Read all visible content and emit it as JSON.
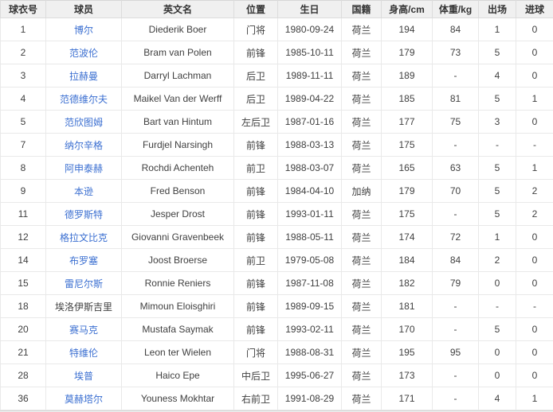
{
  "colors": {
    "link_blue": "#3b6fd1",
    "header_background": "#f0f0f0",
    "cell_border": "#e9e9e9",
    "text": "#404040"
  },
  "table": {
    "columns": [
      {
        "key": "number",
        "label": "球衣号"
      },
      {
        "key": "name",
        "label": "球员"
      },
      {
        "key": "en_name",
        "label": "英文名"
      },
      {
        "key": "position",
        "label": "位置"
      },
      {
        "key": "birthday",
        "label": "生日"
      },
      {
        "key": "nationality",
        "label": "国籍"
      },
      {
        "key": "height",
        "label": "身高/cm"
      },
      {
        "key": "weight",
        "label": "体重/kg"
      },
      {
        "key": "appearances",
        "label": "出场"
      },
      {
        "key": "goals",
        "label": "进球"
      }
    ],
    "rows": [
      {
        "number": "1",
        "name": "博尔",
        "name_is_link": true,
        "en_name": "Diederik Boer",
        "position": "门将",
        "birthday": "1980-09-24",
        "nationality": "荷兰",
        "height": "194",
        "weight": "84",
        "appearances": "1",
        "goals": "0"
      },
      {
        "number": "2",
        "name": "范波伦",
        "name_is_link": true,
        "en_name": "Bram van Polen",
        "position": "前锋",
        "birthday": "1985-10-11",
        "nationality": "荷兰",
        "height": "179",
        "weight": "73",
        "appearances": "5",
        "goals": "0"
      },
      {
        "number": "3",
        "name": "拉赫曼",
        "name_is_link": true,
        "en_name": "Darryl Lachman",
        "position": "后卫",
        "birthday": "1989-11-11",
        "nationality": "荷兰",
        "height": "189",
        "weight": "-",
        "appearances": "4",
        "goals": "0"
      },
      {
        "number": "4",
        "name": "范德维尔夫",
        "name_is_link": true,
        "en_name": "Maikel Van der Werff",
        "position": "后卫",
        "birthday": "1989-04-22",
        "nationality": "荷兰",
        "height": "185",
        "weight": "81",
        "appearances": "5",
        "goals": "1"
      },
      {
        "number": "5",
        "name": "范欣图姆",
        "name_is_link": true,
        "en_name": "Bart van Hintum",
        "position": "左后卫",
        "birthday": "1987-01-16",
        "nationality": "荷兰",
        "height": "177",
        "weight": "75",
        "appearances": "3",
        "goals": "0"
      },
      {
        "number": "7",
        "name": "纳尔辛格",
        "name_is_link": true,
        "en_name": "Furdjel Narsingh",
        "position": "前锋",
        "birthday": "1988-03-13",
        "nationality": "荷兰",
        "height": "175",
        "weight": "-",
        "appearances": "-",
        "goals": "-"
      },
      {
        "number": "8",
        "name": "阿申泰赫",
        "name_is_link": true,
        "en_name": "Rochdi Achenteh",
        "position": "前卫",
        "birthday": "1988-03-07",
        "nationality": "荷兰",
        "height": "165",
        "weight": "63",
        "appearances": "5",
        "goals": "1"
      },
      {
        "number": "9",
        "name": "本逊",
        "name_is_link": true,
        "en_name": "Fred Benson",
        "position": "前锋",
        "birthday": "1984-04-10",
        "nationality": "加纳",
        "height": "179",
        "weight": "70",
        "appearances": "5",
        "goals": "2"
      },
      {
        "number": "11",
        "name": "德罗斯特",
        "name_is_link": true,
        "en_name": "Jesper Drost",
        "position": "前锋",
        "birthday": "1993-01-11",
        "nationality": "荷兰",
        "height": "175",
        "weight": "-",
        "appearances": "5",
        "goals": "2"
      },
      {
        "number": "12",
        "name": "格拉文比克",
        "name_is_link": true,
        "en_name": "Giovanni Gravenbeek",
        "position": "前锋",
        "birthday": "1988-05-11",
        "nationality": "荷兰",
        "height": "174",
        "weight": "72",
        "appearances": "1",
        "goals": "0"
      },
      {
        "number": "14",
        "name": "布罗塞",
        "name_is_link": true,
        "en_name": "Joost Broerse",
        "position": "前卫",
        "birthday": "1979-05-08",
        "nationality": "荷兰",
        "height": "184",
        "weight": "84",
        "appearances": "2",
        "goals": "0"
      },
      {
        "number": "15",
        "name": "雷尼尔斯",
        "name_is_link": true,
        "en_name": "Ronnie Reniers",
        "position": "前锋",
        "birthday": "1987-11-08",
        "nationality": "荷兰",
        "height": "182",
        "weight": "79",
        "appearances": "0",
        "goals": "0"
      },
      {
        "number": "18",
        "name": "埃洛伊斯吉里",
        "name_is_link": false,
        "en_name": "Mimoun Eloisghiri",
        "position": "前锋",
        "birthday": "1989-09-15",
        "nationality": "荷兰",
        "height": "181",
        "weight": "-",
        "appearances": "-",
        "goals": "-"
      },
      {
        "number": "20",
        "name": "赛马克",
        "name_is_link": true,
        "en_name": "Mustafa Saymak",
        "position": "前锋",
        "birthday": "1993-02-11",
        "nationality": "荷兰",
        "height": "170",
        "weight": "-",
        "appearances": "5",
        "goals": "0"
      },
      {
        "number": "21",
        "name": "特维伦",
        "name_is_link": true,
        "en_name": "Leon ter Wielen",
        "position": "门将",
        "birthday": "1988-08-31",
        "nationality": "荷兰",
        "height": "195",
        "weight": "95",
        "appearances": "0",
        "goals": "0"
      },
      {
        "number": "28",
        "name": "埃普",
        "name_is_link": true,
        "en_name": "Haico Epe",
        "position": "中后卫",
        "birthday": "1995-06-27",
        "nationality": "荷兰",
        "height": "173",
        "weight": "-",
        "appearances": "0",
        "goals": "0"
      },
      {
        "number": "36",
        "name": "莫赫塔尔",
        "name_is_link": true,
        "en_name": "Youness Mokhtar",
        "position": "右前卫",
        "birthday": "1991-08-29",
        "nationality": "荷兰",
        "height": "171",
        "weight": "-",
        "appearances": "4",
        "goals": "1"
      }
    ]
  }
}
